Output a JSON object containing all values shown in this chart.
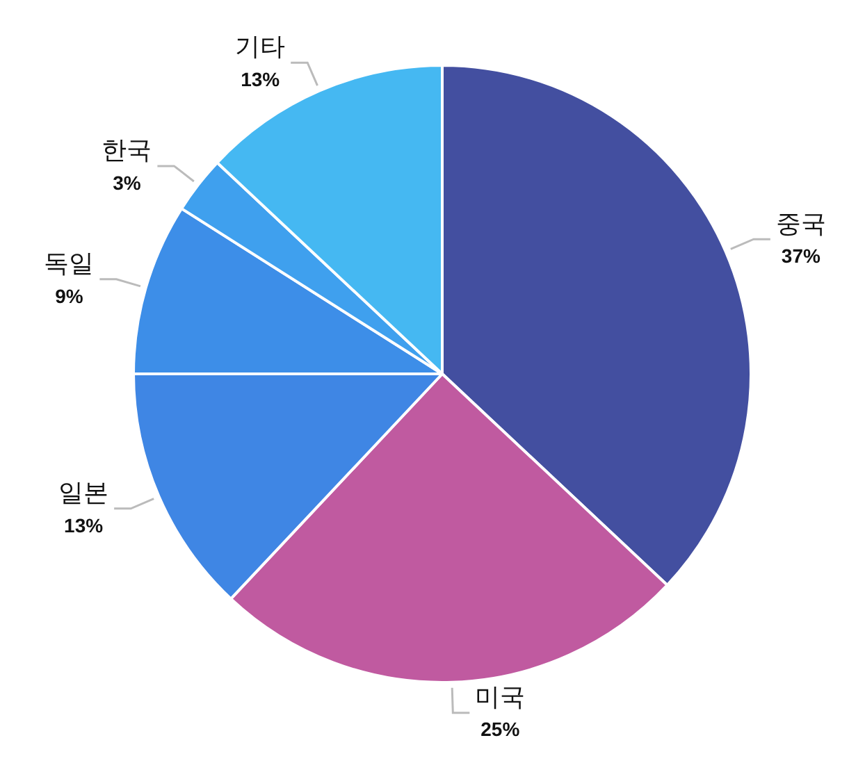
{
  "chart_data": {
    "type": "pie",
    "categories": [
      "중국",
      "미국",
      "일본",
      "독일",
      "한국",
      "기타"
    ],
    "values": [
      37,
      25,
      13,
      9,
      3,
      13
    ],
    "value_labels": [
      "37%",
      "25%",
      "13%",
      "9%",
      "3%",
      "13%"
    ],
    "colors": [
      "#434fa0",
      "#c05aa0",
      "#3f86e4",
      "#3d8ee8",
      "#3fa0ee",
      "#45b8f2"
    ],
    "legend": false
  }
}
